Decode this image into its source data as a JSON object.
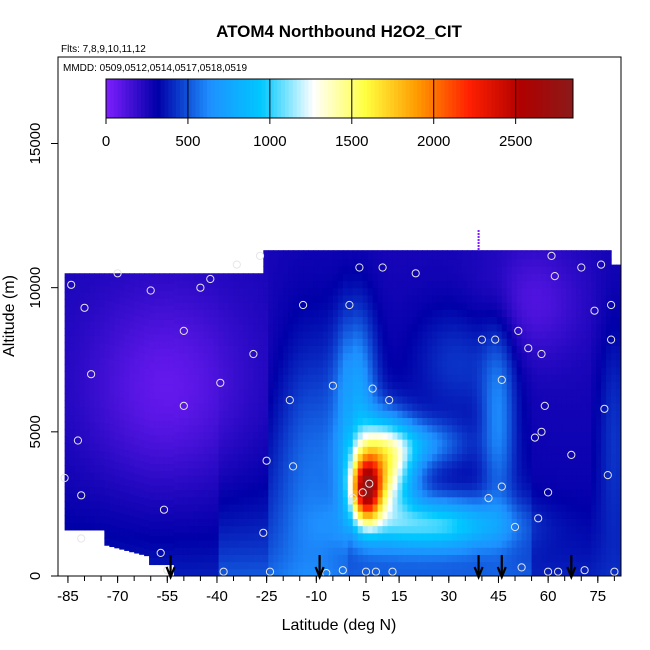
{
  "chart_data": {
    "type": "heatmap",
    "title": "ATOM4 Northbound H2O2_CIT",
    "subtitle_flights": "Flts: 7,8,9,10,11,12",
    "subtitle_dates": "MMDD: 0509,0512,0514,0517,0518,0519",
    "xlabel": "Latitude (deg N)",
    "ylabel": "Altitude (m)",
    "xlim": [
      -88,
      82
    ],
    "ylim": [
      0,
      18000
    ],
    "x_ticks": [
      -85,
      -70,
      -55,
      -40,
      -25,
      -10,
      5,
      15,
      30,
      45,
      60,
      75
    ],
    "x_tick_labels": [
      "-85",
      "-70",
      "-55",
      "-40",
      "-25",
      "-10",
      "5",
      "15",
      "30",
      "45",
      "60",
      "75"
    ],
    "y_ticks": [
      0,
      5000,
      10000,
      15000
    ],
    "y_tick_labels": [
      "0",
      "5000",
      "10000",
      "15000"
    ],
    "colorbar": {
      "min": 0,
      "max": 2850,
      "ticks": [
        0,
        500,
        1000,
        1500,
        2000,
        2500
      ],
      "tick_labels": [
        "0",
        "500",
        "1000",
        "1500",
        "2000",
        "2500"
      ],
      "colors": [
        "#7f1fff",
        "#0000a8",
        "#1e90ff",
        "#00c8ff",
        "#ffffff",
        "#ffff40",
        "#ff9a00",
        "#ff2000",
        "#b00000",
        "#8b1a1a"
      ]
    },
    "flight_arrows_lat": [
      -54,
      -9,
      39,
      46,
      67
    ],
    "sample_points": [
      [
        -84,
        10100
      ],
      [
        -80,
        9300
      ],
      [
        -78,
        7000
      ],
      [
        -82,
        4700
      ],
      [
        -81,
        2800
      ],
      [
        -86,
        3400
      ],
      [
        -81,
        1300
      ],
      [
        -70,
        10500
      ],
      [
        -60,
        9900
      ],
      [
        -56,
        2300
      ],
      [
        -57,
        800
      ],
      [
        -55,
        200
      ],
      [
        -50,
        8500
      ],
      [
        -50,
        5900
      ],
      [
        -45,
        10000
      ],
      [
        -42,
        10300
      ],
      [
        -39,
        6700
      ],
      [
        -38,
        150
      ],
      [
        -34,
        10800
      ],
      [
        -29,
        7700
      ],
      [
        -27,
        11100
      ],
      [
        -25,
        4000
      ],
      [
        -24,
        150
      ],
      [
        -26,
        1500
      ],
      [
        -18,
        6100
      ],
      [
        -17,
        3800
      ],
      [
        -14,
        9400
      ],
      [
        -7,
        100
      ],
      [
        -5,
        6600
      ],
      [
        -2,
        200
      ],
      [
        0,
        9400
      ],
      [
        1,
        2700
      ],
      [
        3,
        10700
      ],
      [
        4,
        2900
      ],
      [
        5,
        150
      ],
      [
        6,
        3200
      ],
      [
        7,
        6500
      ],
      [
        8,
        150
      ],
      [
        10,
        10700
      ],
      [
        12,
        6100
      ],
      [
        13,
        150
      ],
      [
        20,
        10500
      ],
      [
        40,
        8200
      ],
      [
        42,
        2700
      ],
      [
        44,
        8200
      ],
      [
        46,
        6800
      ],
      [
        46,
        3100
      ],
      [
        50,
        1700
      ],
      [
        51,
        8500
      ],
      [
        52,
        300
      ],
      [
        54,
        7900
      ],
      [
        56,
        4800
      ],
      [
        57,
        2000
      ],
      [
        58,
        7700
      ],
      [
        58,
        5000
      ],
      [
        59,
        5900
      ],
      [
        60,
        2900
      ],
      [
        60,
        150
      ],
      [
        61,
        11100
      ],
      [
        62,
        10400
      ],
      [
        63,
        150
      ],
      [
        67,
        4200
      ],
      [
        70,
        10700
      ],
      [
        71,
        200
      ],
      [
        74,
        9200
      ],
      [
        77,
        5800
      ],
      [
        78,
        3500
      ],
      [
        79,
        8200
      ],
      [
        79,
        9400
      ],
      [
        80,
        150
      ],
      [
        76,
        10800
      ]
    ],
    "grid": false
  }
}
